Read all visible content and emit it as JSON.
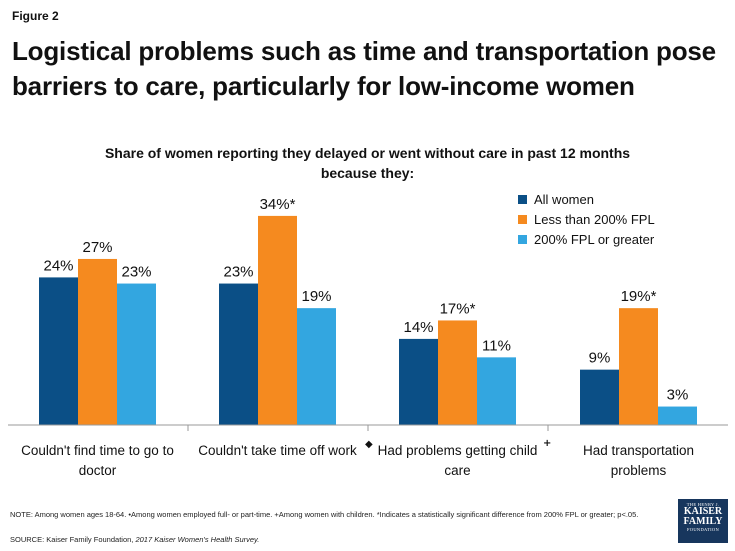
{
  "figure_label": "Figure 2",
  "title_line1": "Logistical problems such as time and transportation pose",
  "title_line2": "barriers to care, particularly for low-income women",
  "colors": {
    "all": "#0b4f86",
    "low": "#f58a1f",
    "high": "#33a6e0"
  },
  "chart_data": {
    "type": "bar",
    "title_line1": "Share of women reporting they delayed or went without care in past 12 months",
    "title_line2": "because they:",
    "categories": [
      [
        "Couldn't find time to go to",
        "doctor"
      ],
      [
        "Couldn't take time off work",
        ""
      ],
      [
        "Had problems getting child",
        "care"
      ],
      [
        "Had transportation",
        "problems"
      ]
    ],
    "category_markers": [
      "",
      "◆",
      "+",
      ""
    ],
    "series": [
      {
        "name": "All women",
        "key": "all",
        "values": [
          24,
          23,
          14,
          9
        ],
        "labels": [
          "24%",
          "23%",
          "14%",
          "9%"
        ]
      },
      {
        "name": "Less than 200% FPL",
        "key": "low",
        "values": [
          27,
          34,
          17,
          19
        ],
        "labels": [
          "27%",
          "34%*",
          "17%*",
          "19%*"
        ]
      },
      {
        "name": "200% FPL or greater",
        "key": "high",
        "values": [
          23,
          19,
          11,
          3
        ],
        "labels": [
          "23%",
          "19%",
          "11%",
          "3%"
        ]
      }
    ],
    "ylim": [
      0,
      40
    ],
    "grid": false,
    "legend_position": "top-right"
  },
  "footnote": {
    "note": "NOTE: Among women ages 18-64. •Among women employed full- or part-time. +Among women with children. *Indicates a statistically significant difference from 200% FPL or greater; p<.05.",
    "source_prefix": "SOURCE:  Kaiser Family Foundation, ",
    "source_italic": "2017 Kaiser Women's Health Survey."
  },
  "logo": {
    "line1": "THE HENRY J.",
    "line2a": "KAISER",
    "line2b": "FAMILY",
    "line3": "FOUNDATION"
  }
}
